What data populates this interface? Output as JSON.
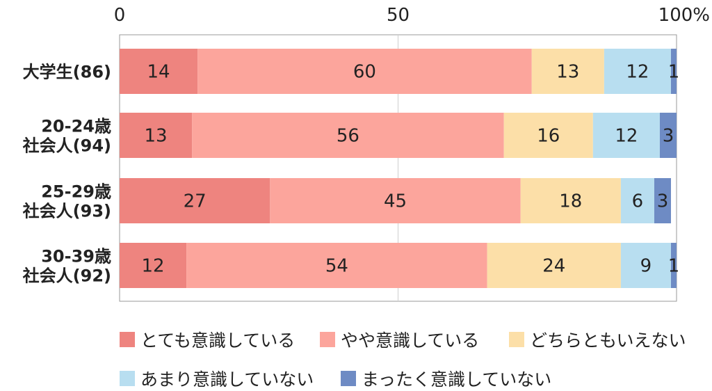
{
  "chart_data": {
    "type": "bar",
    "orientation": "horizontal",
    "stacked": true,
    "title": "",
    "xlabel": "",
    "ylabel": "",
    "xlim": [
      0,
      100
    ],
    "x_ticks": [
      "0",
      "50",
      "100%"
    ],
    "grid": true,
    "legend_position": "bottom",
    "categories": [
      [
        "大学生(86)"
      ],
      [
        "20-24歳",
        "社会人(94)"
      ],
      [
        "25-29歳",
        "社会人(93)"
      ],
      [
        "30-39歳",
        "社会人(92)"
      ]
    ],
    "series": [
      {
        "name": "とても意識している",
        "color": "#ee847f",
        "values": [
          14,
          13,
          27,
          12
        ]
      },
      {
        "name": "やや意識している",
        "color": "#fca59c",
        "values": [
          60,
          56,
          45,
          54
        ]
      },
      {
        "name": "どちらともいえない",
        "color": "#fcdfa8",
        "values": [
          13,
          16,
          18,
          24
        ]
      },
      {
        "name": "あまり意識していない",
        "color": "#b8def0",
        "values": [
          12,
          12,
          6,
          9
        ]
      },
      {
        "name": "まったく意識していない",
        "color": "#6e8bc4",
        "values": [
          1,
          3,
          3,
          1
        ]
      }
    ]
  }
}
